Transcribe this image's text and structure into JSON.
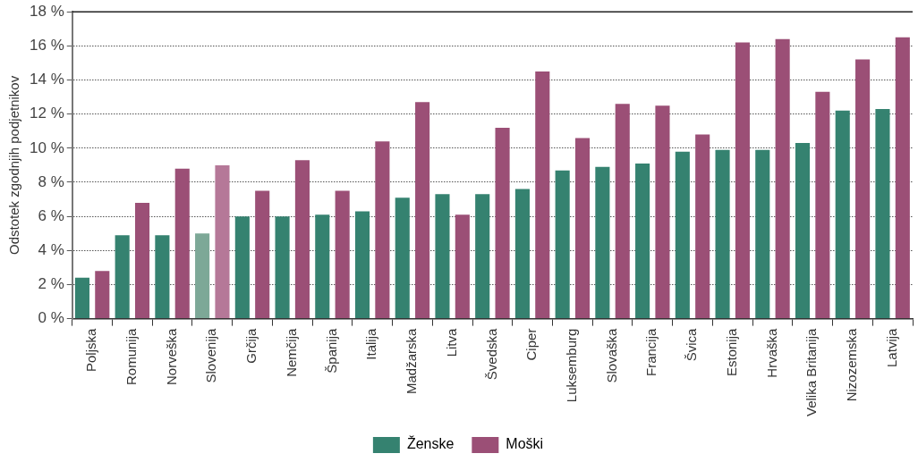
{
  "chart_data": {
    "type": "bar",
    "ylabel": "Odstotek zgodnjih podjetnikov",
    "categories": [
      "Poljska",
      "Romunija",
      "Norveška",
      "Slovenija",
      "Grčija",
      "Nemčija",
      "Španija",
      "Italija",
      "Madžarska",
      "Litva",
      "Švedska",
      "Ciper",
      "Luksemburg",
      "Slovaška",
      "Francija",
      "Švica",
      "Estonija",
      "Hrvaška",
      "Velika Britanija",
      "Nizozemska",
      "Latvija"
    ],
    "series": [
      {
        "name": "Ženske",
        "color": "#358270",
        "colors": [
          "#358270",
          "#358270",
          "#358270",
          "#7da897",
          "#358270",
          "#358270",
          "#358270",
          "#358270",
          "#358270",
          "#358270",
          "#358270",
          "#358270",
          "#358270",
          "#358270",
          "#358270",
          "#358270",
          "#358270",
          "#358270",
          "#358270",
          "#358270",
          "#358270"
        ],
        "values": [
          2.4,
          4.9,
          4.9,
          5.0,
          6.0,
          6.0,
          6.1,
          6.3,
          7.1,
          7.3,
          7.3,
          7.6,
          8.7,
          8.9,
          9.1,
          9.8,
          9.9,
          9.9,
          10.3,
          12.2,
          12.3
        ]
      },
      {
        "name": "Moški",
        "color": "#9b4f76",
        "colors": [
          "#9b4f76",
          "#9b4f76",
          "#9b4f76",
          "#b57898",
          "#9b4f76",
          "#9b4f76",
          "#9b4f76",
          "#9b4f76",
          "#9b4f76",
          "#9b4f76",
          "#9b4f76",
          "#9b4f76",
          "#9b4f76",
          "#9b4f76",
          "#9b4f76",
          "#9b4f76",
          "#9b4f76",
          "#9b4f76",
          "#9b4f76",
          "#9b4f76",
          "#9b4f76"
        ],
        "values": [
          2.8,
          6.8,
          8.8,
          9.0,
          7.5,
          9.3,
          7.5,
          10.4,
          12.7,
          6.1,
          11.2,
          14.5,
          10.6,
          12.6,
          12.5,
          10.8,
          16.2,
          16.4,
          13.3,
          15.2,
          16.5
        ]
      }
    ],
    "ylim": [
      0,
      18
    ],
    "yticks": [
      {
        "value": 0,
        "label": "0 %"
      },
      {
        "value": 2,
        "label": "2 %"
      },
      {
        "value": 4,
        "label": "4 %"
      },
      {
        "value": 6,
        "label": "6 %"
      },
      {
        "value": 8,
        "label": "8 %"
      },
      {
        "value": 10,
        "label": "10 %"
      },
      {
        "value": 12,
        "label": "12 %"
      },
      {
        "value": 14,
        "label": "14 %"
      },
      {
        "value": 16,
        "label": "16 %"
      },
      {
        "value": 18,
        "label": "18 %"
      }
    ],
    "grid": "y",
    "legend": "bottom"
  }
}
